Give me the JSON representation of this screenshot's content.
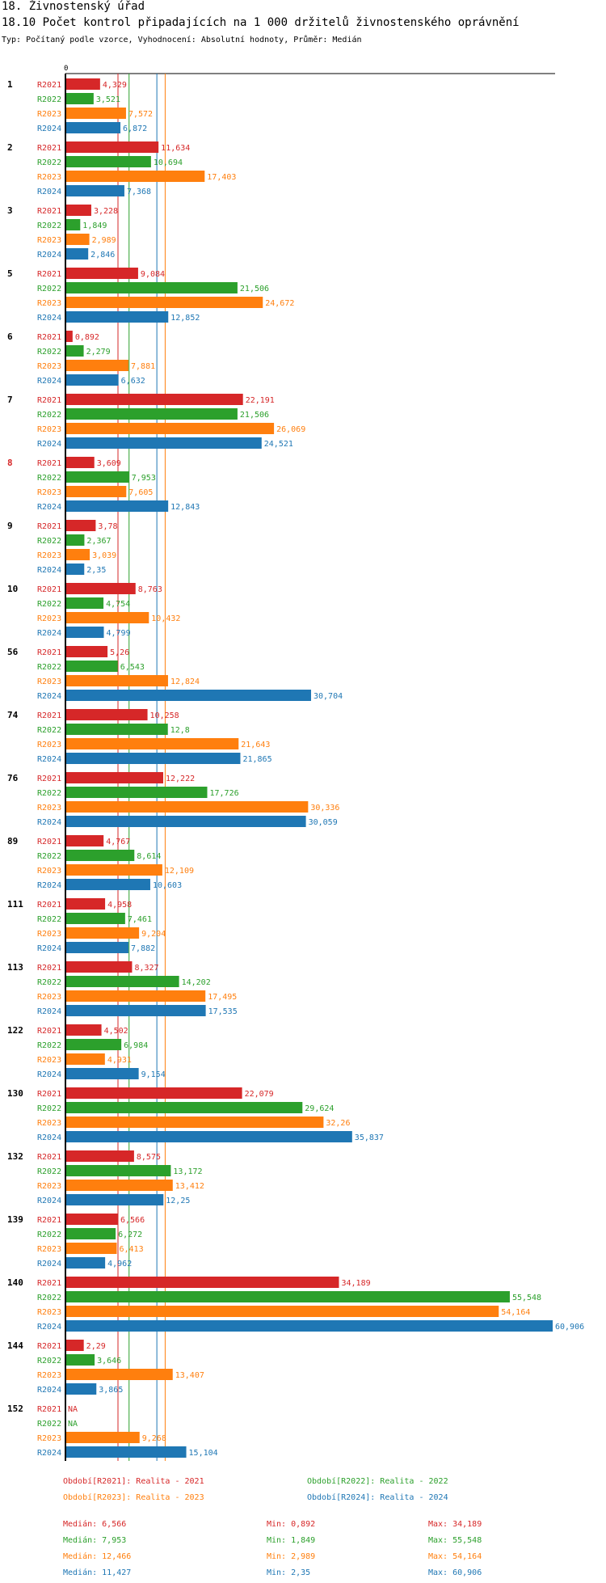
{
  "header": {
    "title": "18. Živnostenský úřad",
    "subtitle": "18.10 Počet kontrol připadajících na 1 000 držitelů živnostenského oprávnění",
    "info": "Typ: Počítaný podle vzorce, Vyhodnocení: Absolutní hodnoty, Průměr: Medián"
  },
  "colors": {
    "R2021": "#d62728",
    "R2022": "#2ca02c",
    "R2023": "#ff7f0e",
    "R2024": "#1f77b4",
    "highlight": "#d62728",
    "text": "#000000"
  },
  "chart_data": {
    "type": "bar",
    "orientation": "horizontal",
    "title": "18.10 Počet kontrol připadajících na 1 000 držitelů živnostenského oprávnění",
    "xlim": [
      0,
      60.906
    ],
    "x_tick_labels": [
      "0"
    ],
    "series_names": [
      "R2021",
      "R2022",
      "R2023",
      "R2024"
    ],
    "highlighted_category": "8",
    "categories": [
      {
        "id": "1",
        "values": [
          4.329,
          3.521,
          7.572,
          6.872
        ],
        "labels": [
          "4,329",
          "3,521",
          "7,572",
          "6,872"
        ]
      },
      {
        "id": "2",
        "values": [
          11.634,
          10.694,
          17.403,
          7.368
        ],
        "labels": [
          "11,634",
          "10,694",
          "17,403",
          "7,368"
        ]
      },
      {
        "id": "3",
        "values": [
          3.228,
          1.849,
          2.989,
          2.846
        ],
        "labels": [
          "3,228",
          "1,849",
          "2,989",
          "2,846"
        ]
      },
      {
        "id": "5",
        "values": [
          9.084,
          21.506,
          24.672,
          12.852
        ],
        "labels": [
          "9,084",
          "21,506",
          "24,672",
          "12,852"
        ]
      },
      {
        "id": "6",
        "values": [
          0.892,
          2.279,
          7.881,
          6.632
        ],
        "labels": [
          "0,892",
          "2,279",
          "7,881",
          "6,632"
        ]
      },
      {
        "id": "7",
        "values": [
          22.191,
          21.506,
          26.069,
          24.521
        ],
        "labels": [
          "22,191",
          "21,506",
          "26,069",
          "24,521"
        ]
      },
      {
        "id": "8",
        "values": [
          3.609,
          7.953,
          7.605,
          12.843
        ],
        "labels": [
          "3,609",
          "7,953",
          "7,605",
          "12,843"
        ]
      },
      {
        "id": "9",
        "values": [
          3.78,
          2.367,
          3.039,
          2.35
        ],
        "labels": [
          "3,78",
          "2,367",
          "3,039",
          "2,35"
        ]
      },
      {
        "id": "10",
        "values": [
          8.763,
          4.754,
          10.432,
          4.799
        ],
        "labels": [
          "8,763",
          "4,754",
          "10,432",
          "4,799"
        ]
      },
      {
        "id": "56",
        "values": [
          5.26,
          6.543,
          12.824,
          30.704
        ],
        "labels": [
          "5,26",
          "6,543",
          "12,824",
          "30,704"
        ]
      },
      {
        "id": "74",
        "values": [
          10.258,
          12.8,
          21.643,
          21.865
        ],
        "labels": [
          "10,258",
          "12,8",
          "21,643",
          "21,865"
        ]
      },
      {
        "id": "76",
        "values": [
          12.222,
          17.726,
          30.336,
          30.059
        ],
        "labels": [
          "12,222",
          "17,726",
          "30,336",
          "30,059"
        ]
      },
      {
        "id": "89",
        "values": [
          4.767,
          8.614,
          12.109,
          10.603
        ],
        "labels": [
          "4,767",
          "8,614",
          "12,109",
          "10,603"
        ]
      },
      {
        "id": "111",
        "values": [
          4.958,
          7.461,
          9.204,
          7.882
        ],
        "labels": [
          "4,958",
          "7,461",
          "9,204",
          "7,882"
        ]
      },
      {
        "id": "113",
        "values": [
          8.327,
          14.202,
          17.495,
          17.535
        ],
        "labels": [
          "8,327",
          "14,202",
          "17,495",
          "17,535"
        ]
      },
      {
        "id": "122",
        "values": [
          4.502,
          6.984,
          4.931,
          9.154
        ],
        "labels": [
          "4,502",
          "6,984",
          "4,931",
          "9,154"
        ]
      },
      {
        "id": "130",
        "values": [
          22.079,
          29.624,
          32.26,
          35.837
        ],
        "labels": [
          "22,079",
          "29,624",
          "32,26",
          "35,837"
        ]
      },
      {
        "id": "132",
        "values": [
          8.575,
          13.172,
          13.412,
          12.25
        ],
        "labels": [
          "8,575",
          "13,172",
          "13,412",
          "12,25"
        ]
      },
      {
        "id": "139",
        "values": [
          6.566,
          6.272,
          6.413,
          4.962
        ],
        "labels": [
          "6,566",
          "6,272",
          "6,413",
          "4,962"
        ]
      },
      {
        "id": "140",
        "values": [
          34.189,
          55.548,
          54.164,
          60.906
        ],
        "labels": [
          "34,189",
          "55,548",
          "54,164",
          "60,906"
        ]
      },
      {
        "id": "144",
        "values": [
          2.29,
          3.646,
          13.407,
          3.865
        ],
        "labels": [
          "2,29",
          "3,646",
          "13,407",
          "3,865"
        ]
      },
      {
        "id": "152",
        "values": [
          null,
          null,
          9.268,
          15.104
        ],
        "labels": [
          "NA",
          "NA",
          "9,268",
          "15,104"
        ]
      }
    ],
    "median_lines": [
      6.566,
      7.953,
      12.466,
      11.427
    ],
    "legend": [
      {
        "series": "R2021",
        "text": "Období[R2021]: Realita - 2021"
      },
      {
        "series": "R2022",
        "text": "Období[R2022]: Realita - 2022"
      },
      {
        "series": "R2023",
        "text": "Období[R2023]: Realita - 2023"
      },
      {
        "series": "R2024",
        "text": "Období[R2024]: Realita - 2024"
      }
    ],
    "stats": [
      {
        "series": "R2021",
        "median": "Medián: 6,566",
        "min": "Min: 0,892",
        "max": "Max: 34,189"
      },
      {
        "series": "R2022",
        "median": "Medián: 7,953",
        "min": "Min: 1,849",
        "max": "Max: 55,548"
      },
      {
        "series": "R2023",
        "median": "Medián: 12,466",
        "min": "Min: 2,989",
        "max": "Max: 54,164"
      },
      {
        "series": "R2024",
        "median": "Medián: 11,427",
        "min": "Min: 2,35",
        "max": "Max: 60,906"
      }
    ]
  }
}
